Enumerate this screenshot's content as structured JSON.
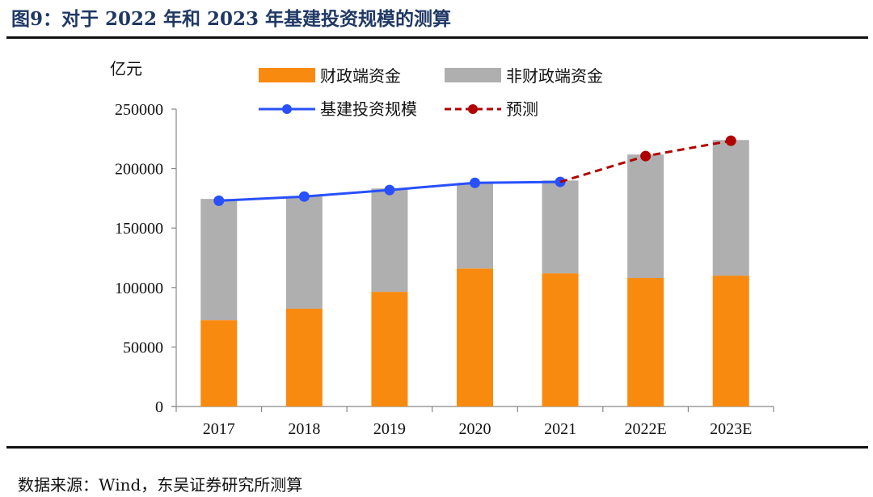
{
  "title": "图9：对于 2022 年和 2023 年基建投资规模的测算",
  "source": "数据来源：Wind，东吴证券研究所测算",
  "chart_data": {
    "type": "bar",
    "title": "图9：对于 2022 年和 2023 年基建投资规模的测算",
    "ylabel": "亿元",
    "xlabel": "",
    "ylim": [
      0,
      250000
    ],
    "yticks": [
      "0",
      "50000",
      "100000",
      "150000",
      "200000",
      "250000"
    ],
    "ytick_values": [
      0,
      50000,
      100000,
      150000,
      200000,
      250000
    ],
    "categories": [
      "2017",
      "2018",
      "2019",
      "2020",
      "2021",
      "2022E",
      "2023E"
    ],
    "stacked": true,
    "grid": false,
    "legend_position": "top",
    "series": [
      {
        "name": "财政端资金",
        "kind": "bar",
        "color": "#f98a10",
        "values": [
          72600,
          82200,
          96400,
          116000,
          112000,
          108000,
          110000
        ]
      },
      {
        "name": "非财政端资金",
        "kind": "bar",
        "color": "#afafaf",
        "values": [
          101900,
          94300,
          86900,
          72000,
          78000,
          103800,
          114000
        ]
      },
      {
        "name": "基建投资规模",
        "kind": "line",
        "color": "#2850ff",
        "values": [
          173000,
          176500,
          182000,
          188000,
          188800,
          null,
          null
        ]
      },
      {
        "name": "预测",
        "kind": "line-dashed",
        "color": "#b00000",
        "values": [
          null,
          null,
          null,
          null,
          188800,
          210500,
          223400
        ]
      }
    ]
  }
}
